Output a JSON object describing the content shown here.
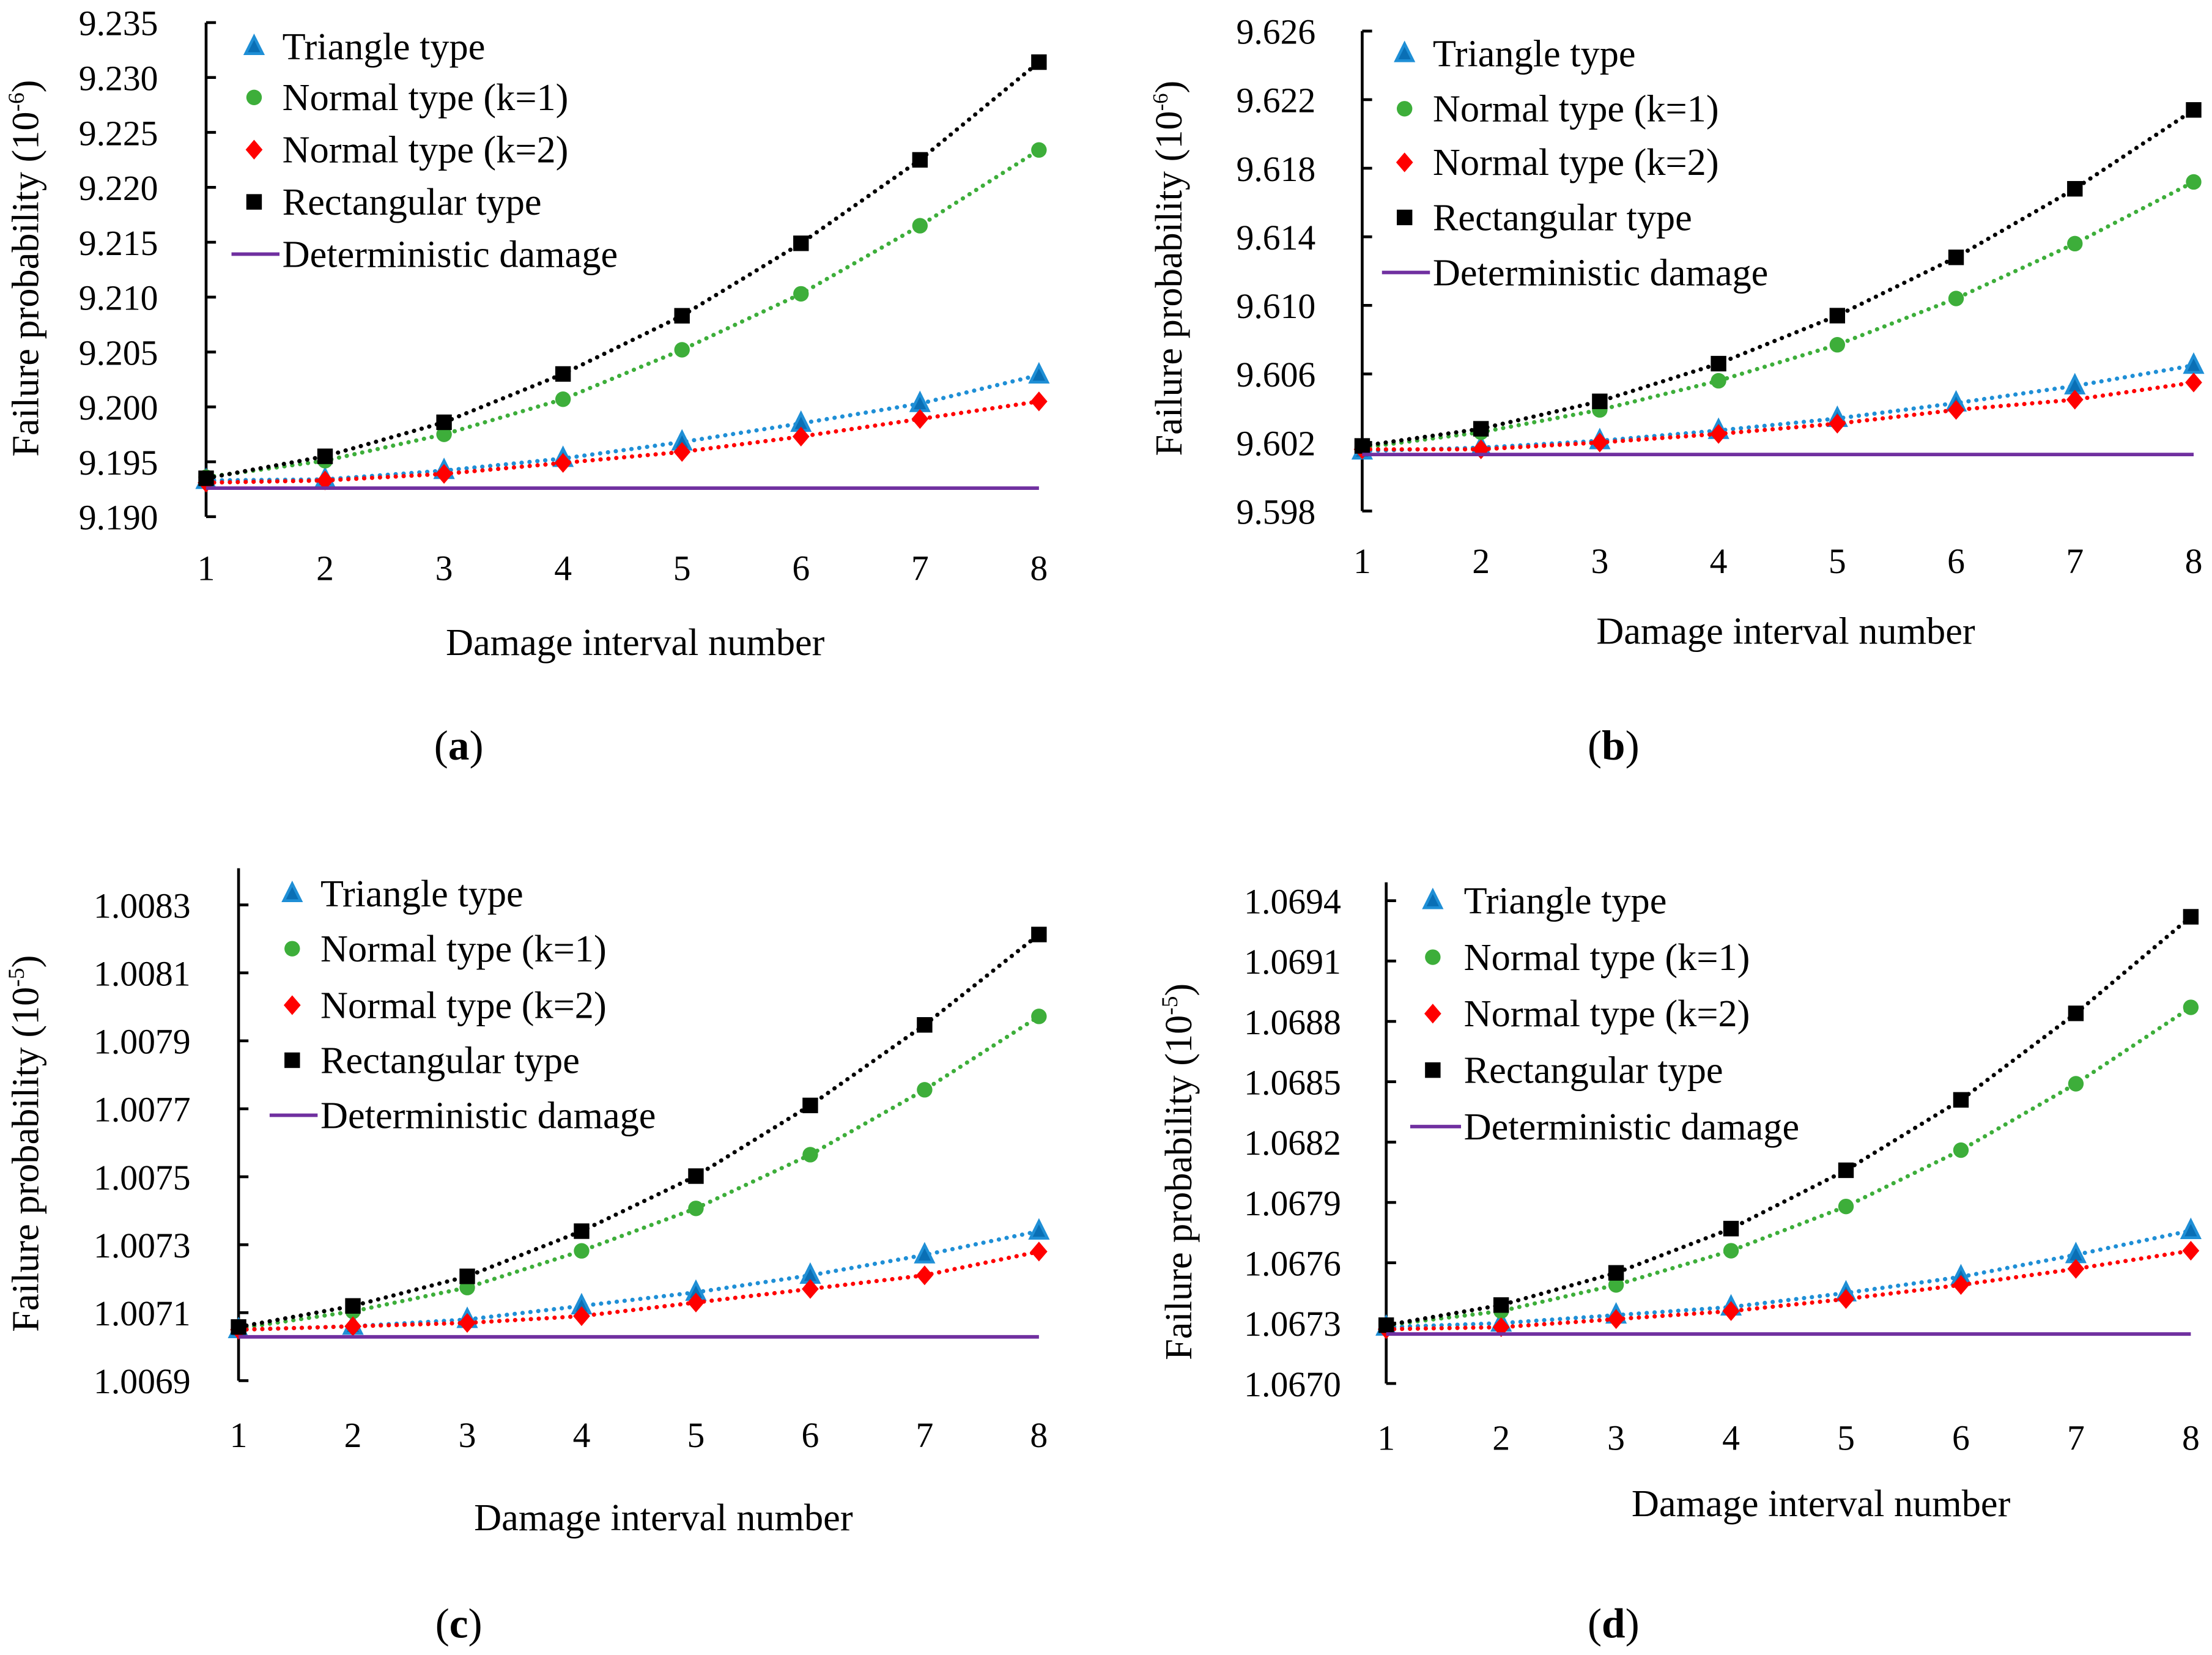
{
  "colors": {
    "triangle": "#1f8fd6",
    "triangle_fill": "#0a6fb5",
    "normal1": "#3dae3a",
    "normal2": "#ff0000",
    "rect": "#000000",
    "det": "#7030a0"
  },
  "chart_data": [
    {
      "id": "a",
      "type": "line",
      "caption": "a",
      "xlabel": "Damage interval number",
      "ylabel_prefix": "Failure probability (10",
      "ylabel_exp": "-6",
      "ylabel_suffix": ")",
      "x": [
        1,
        2,
        3,
        4,
        5,
        6,
        7,
        8
      ],
      "xticks": [
        "1",
        "2",
        "3",
        "4",
        "5",
        "6",
        "7",
        "8"
      ],
      "ylim": [
        9.19,
        9.235
      ],
      "yticks": [
        "9.190",
        "9.195",
        "9.200",
        "9.205",
        "9.210",
        "9.215",
        "9.220",
        "9.225",
        "9.230",
        "9.235"
      ],
      "legend_position": "top-left",
      "series": [
        {
          "key": "triangle",
          "name": "Triangle type",
          "marker": "triangle",
          "values": [
            9.1933,
            9.1934,
            9.1942,
            9.1953,
            9.1968,
            9.1985,
            9.2003,
            9.2029
          ]
        },
        {
          "key": "normal1",
          "name": "Normal type (k=1)",
          "marker": "circle",
          "values": [
            9.1936,
            9.1951,
            9.1975,
            9.2007,
            9.2052,
            9.2103,
            9.2165,
            9.2234
          ]
        },
        {
          "key": "normal2",
          "name": "Normal type (k=2)",
          "marker": "diamond",
          "values": [
            9.1931,
            9.1933,
            9.1939,
            9.1949,
            9.1959,
            9.1973,
            9.1989,
            9.2005
          ]
        },
        {
          "key": "rect",
          "name": "Rectangular type",
          "marker": "square",
          "values": [
            9.1935,
            9.1955,
            9.1986,
            9.203,
            9.2083,
            9.2149,
            9.2225,
            9.2314
          ]
        },
        {
          "key": "det",
          "name": "Deterministic damage",
          "marker": "line",
          "values": [
            9.1926,
            9.1926,
            9.1926,
            9.1926,
            9.1926,
            9.1926,
            9.1926,
            9.1926
          ]
        }
      ]
    },
    {
      "id": "b",
      "type": "line",
      "caption": "b",
      "xlabel": "Damage interval number",
      "ylabel_prefix": "Failure probability (10",
      "ylabel_exp": "-6",
      "ylabel_suffix": ")",
      "x": [
        1,
        2,
        3,
        4,
        5,
        6,
        7,
        8
      ],
      "xticks": [
        "1",
        "2",
        "3",
        "4",
        "5",
        "6",
        "7",
        "8"
      ],
      "ylim": [
        9.598,
        9.626
      ],
      "yticks": [
        "9.598",
        "9.602",
        "9.606",
        "9.610",
        "9.614",
        "9.618",
        "9.622",
        "9.626"
      ],
      "legend_position": "top-left",
      "series": [
        {
          "key": "triangle",
          "name": "Triangle type",
          "marker": "triangle",
          "values": [
            9.6015,
            9.6017,
            9.6021,
            9.6027,
            9.6034,
            9.6043,
            9.6053,
            9.6065
          ]
        },
        {
          "key": "normal1",
          "name": "Normal type (k=1)",
          "marker": "circle",
          "values": [
            9.6017,
            9.6026,
            9.6039,
            9.6056,
            9.6077,
            9.6104,
            9.6136,
            9.6172
          ]
        },
        {
          "key": "normal2",
          "name": "Normal type (k=2)",
          "marker": "diamond",
          "values": [
            9.6016,
            9.6016,
            9.602,
            9.6025,
            9.6031,
            9.6039,
            9.6045,
            9.6055
          ]
        },
        {
          "key": "rect",
          "name": "Rectangular type",
          "marker": "square",
          "values": [
            9.6018,
            9.6028,
            9.6044,
            9.6066,
            9.6094,
            9.6128,
            9.6168,
            9.6214
          ]
        },
        {
          "key": "det",
          "name": "Deterministic damage",
          "marker": "line",
          "values": [
            9.6013,
            9.6013,
            9.6013,
            9.6013,
            9.6013,
            9.6013,
            9.6013,
            9.6013
          ]
        }
      ]
    },
    {
      "id": "c",
      "type": "line",
      "caption": "c",
      "xlabel": "Damage interval number",
      "ylabel_prefix": "Failure probability (10",
      "ylabel_exp": "-5",
      "ylabel_suffix": ")",
      "x": [
        1,
        2,
        3,
        4,
        5,
        6,
        7,
        8
      ],
      "xticks": [
        "1",
        "2",
        "3",
        "4",
        "5",
        "6",
        "7",
        "8"
      ],
      "ylim": [
        1.0069,
        1.0083
      ],
      "yticks": [
        "1.0069",
        "1.0071",
        "1.0073",
        "1.0075",
        "1.0077",
        "1.0079",
        "1.0081",
        "1.0083"
      ],
      "legend_position": "top-left",
      "series": [
        {
          "key": "triangle",
          "name": "Triangle type",
          "marker": "triangle",
          "values": [
            1.00705,
            1.00706,
            1.00708,
            1.00712,
            1.00716,
            1.00721,
            1.00727,
            1.00734
          ]
        },
        {
          "key": "normal1",
          "name": "Normal type (k=1)",
          "marker": "circle",
          "values": [
            1.007054,
            1.007104,
            1.007174,
            1.007282,
            1.007407,
            1.007565,
            1.007756,
            1.007972
          ]
        },
        {
          "key": "normal2",
          "name": "Normal type (k=2)",
          "marker": "diamond",
          "values": [
            1.00705,
            1.00706,
            1.00707,
            1.00709,
            1.00713,
            1.00717,
            1.00721,
            1.00728
          ]
        },
        {
          "key": "rect",
          "name": "Rectangular type",
          "marker": "square",
          "values": [
            1.007058,
            1.00712,
            1.007207,
            1.00734,
            1.007502,
            1.00771,
            1.007947,
            1.008213
          ]
        },
        {
          "key": "det",
          "name": "Deterministic damage",
          "marker": "line",
          "values": [
            1.007029,
            1.007029,
            1.007029,
            1.007029,
            1.007029,
            1.007029,
            1.007029,
            1.007029
          ]
        }
      ]
    },
    {
      "id": "d",
      "type": "line",
      "caption": "d",
      "xlabel": "Damage interval number",
      "ylabel_prefix": "Failure probability (10",
      "ylabel_exp": "-5",
      "ylabel_suffix": ")",
      "x": [
        1,
        2,
        3,
        4,
        5,
        6,
        7,
        8
      ],
      "xticks": [
        "1",
        "2",
        "3",
        "4",
        "5",
        "6",
        "7",
        "8"
      ],
      "ylim": [
        1.067,
        1.0694
      ],
      "yticks": [
        "1.0670",
        "1.0673",
        "1.0676",
        "1.0679",
        "1.0682",
        "1.0685",
        "1.0688",
        "1.0691",
        "1.0694"
      ],
      "legend_position": "top-left",
      "series": [
        {
          "key": "triangle",
          "name": "Triangle type",
          "marker": "triangle",
          "values": [
            1.06728,
            1.0673,
            1.06734,
            1.06738,
            1.06745,
            1.06753,
            1.06764,
            1.06776
          ]
        },
        {
          "key": "normal1",
          "name": "Normal type (k=1)",
          "marker": "circle",
          "values": [
            1.06729,
            1.06736,
            1.06749,
            1.06766,
            1.06788,
            1.06816,
            1.06849,
            1.06887
          ]
        },
        {
          "key": "normal2",
          "name": "Normal type (k=2)",
          "marker": "diamond",
          "values": [
            1.06727,
            1.06728,
            1.06732,
            1.06736,
            1.06742,
            1.06749,
            1.06757,
            1.06766
          ]
        },
        {
          "key": "rect",
          "name": "Rectangular type",
          "marker": "square",
          "values": [
            1.06729,
            1.06739,
            1.06755,
            1.06777,
            1.06806,
            1.06841,
            1.06884,
            1.06932
          ]
        },
        {
          "key": "det",
          "name": "Deterministic damage",
          "marker": "line",
          "values": [
            1.067246,
            1.067246,
            1.067246,
            1.067246,
            1.067246,
            1.067246,
            1.067246,
            1.067246
          ]
        }
      ]
    }
  ]
}
